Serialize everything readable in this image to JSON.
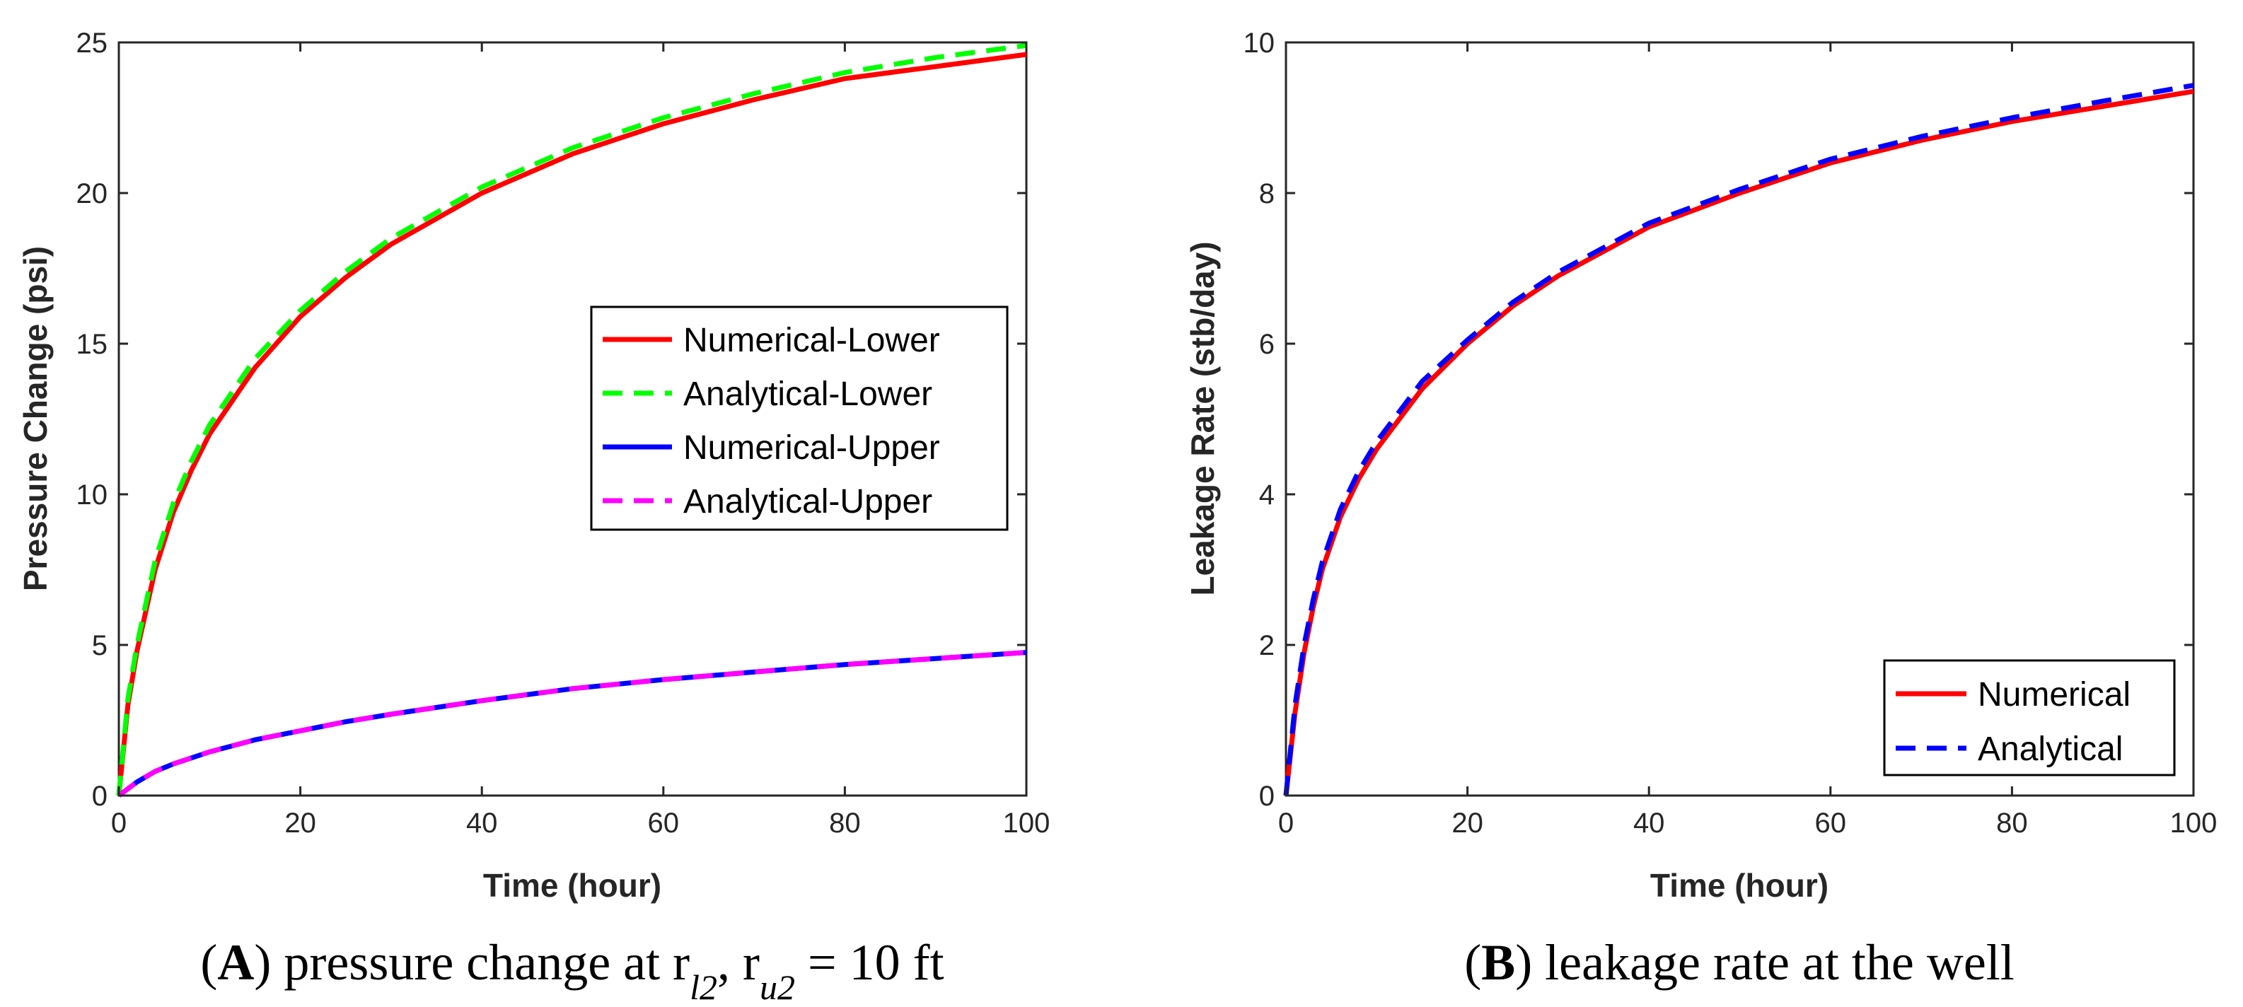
{
  "chart_data": [
    {
      "type": "line",
      "xlabel": "Time (hour)",
      "ylabel": "Pressure Change (psi)",
      "xlim": [
        0,
        100
      ],
      "ylim": [
        0,
        25
      ],
      "xticks": [
        "0",
        "20",
        "40",
        "60",
        "80",
        "100"
      ],
      "yticks": [
        "0",
        "5",
        "10",
        "15",
        "20",
        "25"
      ],
      "legend_position": "center-right",
      "caption": {
        "letter": "A",
        "text": ") pressure change at r",
        "sub1": "l2",
        "mid": ", r",
        "sub2": "u2",
        "tail": " = 10 ft",
        "open": "("
      },
      "series": [
        {
          "name": "Numerical-Lower",
          "color": "#ff0000",
          "style": "solid",
          "x": [
            0,
            1,
            2,
            4,
            6,
            8,
            10,
            15,
            20,
            25,
            30,
            40,
            50,
            60,
            70,
            80,
            90,
            100
          ],
          "y": [
            0,
            3.0,
            4.8,
            7.5,
            9.4,
            10.8,
            12.0,
            14.2,
            15.9,
            17.2,
            18.3,
            20.0,
            21.3,
            22.3,
            23.1,
            23.8,
            24.2,
            24.6
          ]
        },
        {
          "name": "Analytical-Lower",
          "color": "#00ff00",
          "style": "dashed",
          "x": [
            0,
            1,
            2,
            4,
            6,
            8,
            10,
            15,
            20,
            25,
            30,
            40,
            50,
            60,
            70,
            80,
            90,
            100
          ],
          "y": [
            0,
            3.2,
            5.0,
            7.8,
            9.7,
            11.1,
            12.3,
            14.5,
            16.1,
            17.4,
            18.5,
            20.2,
            21.5,
            22.5,
            23.3,
            24.0,
            24.5,
            24.9
          ]
        },
        {
          "name": "Numerical-Upper",
          "color": "#0000ff",
          "style": "solid",
          "x": [
            0,
            2,
            4,
            6,
            8,
            10,
            15,
            20,
            25,
            30,
            40,
            50,
            60,
            70,
            80,
            90,
            100
          ],
          "y": [
            0,
            0.45,
            0.8,
            1.05,
            1.25,
            1.45,
            1.85,
            2.15,
            2.45,
            2.7,
            3.15,
            3.55,
            3.85,
            4.1,
            4.35,
            4.55,
            4.75
          ]
        },
        {
          "name": "Analytical-Upper",
          "color": "#ff00ff",
          "style": "dashed",
          "x": [
            0,
            2,
            4,
            6,
            8,
            10,
            15,
            20,
            25,
            30,
            40,
            50,
            60,
            70,
            80,
            90,
            100
          ],
          "y": [
            0,
            0.45,
            0.8,
            1.05,
            1.25,
            1.45,
            1.85,
            2.15,
            2.45,
            2.7,
            3.15,
            3.55,
            3.85,
            4.1,
            4.35,
            4.55,
            4.75
          ]
        }
      ]
    },
    {
      "type": "line",
      "xlabel": "Time (hour)",
      "ylabel": "Leakage Rate (stb/day)",
      "xlim": [
        0,
        100
      ],
      "ylim": [
        0,
        10
      ],
      "xticks": [
        "0",
        "20",
        "40",
        "60",
        "80",
        "100"
      ],
      "yticks": [
        "0",
        "2",
        "4",
        "6",
        "8",
        "10"
      ],
      "legend_position": "bottom-right",
      "caption": {
        "open": "(",
        "letter": "B",
        "text": ") leakage rate at the well"
      },
      "series": [
        {
          "name": "Numerical",
          "color": "#ff0000",
          "style": "solid",
          "x": [
            0,
            1,
            2,
            3,
            4,
            6,
            8,
            10,
            15,
            20,
            25,
            30,
            40,
            50,
            60,
            70,
            80,
            90,
            100
          ],
          "y": [
            0,
            1.1,
            1.9,
            2.5,
            3.0,
            3.7,
            4.2,
            4.6,
            5.4,
            6.0,
            6.5,
            6.9,
            7.55,
            8.0,
            8.4,
            8.7,
            8.95,
            9.15,
            9.35
          ]
        },
        {
          "name": "Analytical",
          "color": "#0000ff",
          "style": "dashed",
          "x": [
            0,
            1,
            2,
            3,
            4,
            6,
            8,
            10,
            15,
            20,
            25,
            30,
            40,
            50,
            60,
            70,
            80,
            90,
            100
          ],
          "y": [
            0,
            1.2,
            2.0,
            2.6,
            3.1,
            3.8,
            4.3,
            4.7,
            5.5,
            6.05,
            6.55,
            6.95,
            7.6,
            8.05,
            8.45,
            8.75,
            9.0,
            9.22,
            9.43
          ]
        }
      ]
    }
  ]
}
